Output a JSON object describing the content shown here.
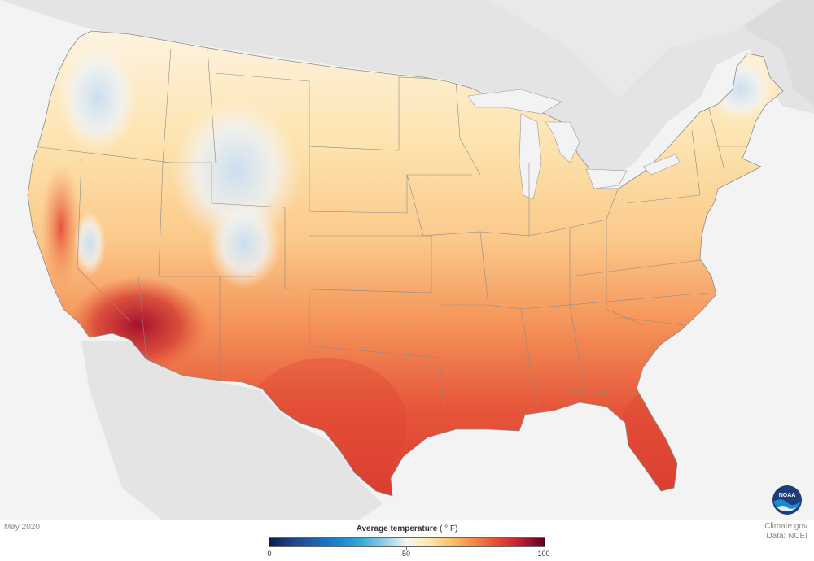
{
  "date_label": "May 2020",
  "legend": {
    "title": "Average temperature",
    "unit": "( ° F)",
    "ticks": [
      "0",
      "50",
      "100"
    ]
  },
  "credit": {
    "line1": "Climate.gov",
    "line2": "Data: NCEI"
  },
  "logo_text": "NOAA",
  "colors": {
    "background": "#f3f3f3",
    "land_outside": "#e4e4e4",
    "cold": "#1a78c2",
    "neutral": "#f7f7f2",
    "warm": "#f48a4a",
    "hot": "#c72531"
  }
}
